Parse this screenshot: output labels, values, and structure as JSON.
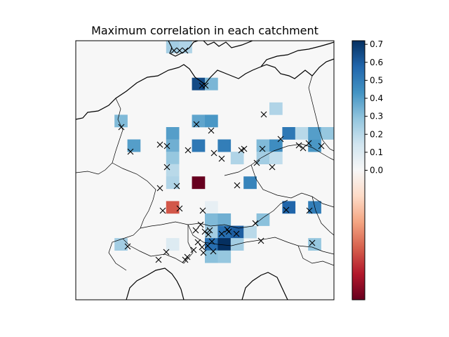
{
  "chart_data": {
    "type": "heatmap",
    "title": "Maximum correlation in each catchment",
    "xlabel": "",
    "ylabel": "",
    "colormap": "RdBu",
    "colorbar": {
      "ticks": [
        0.7,
        0.6,
        0.5,
        0.4,
        0.3,
        0.2,
        0.1,
        0.0
      ],
      "tick_labels": [
        "0.7",
        "0.6",
        "0.5",
        "0.4",
        "0.3",
        "0.2",
        "0.1",
        "0.0"
      ],
      "range": [
        -0.72,
        0.72
      ],
      "position": "right"
    },
    "background_color": "#f7f7f7",
    "map_region": "Central Europe (Germany and neighbours)",
    "grid": {
      "columns": 20,
      "rows": 21,
      "comment_cells": "row/col index from top-left, value = maximum correlation"
    },
    "cells": [
      {
        "row": 0,
        "col": 7,
        "value": 0.25
      },
      {
        "row": 0,
        "col": 8,
        "value": 0.22
      },
      {
        "row": 3,
        "col": 9,
        "value": 0.65
      },
      {
        "row": 3,
        "col": 10,
        "value": 0.33
      },
      {
        "row": 5,
        "col": 15,
        "value": 0.22
      },
      {
        "row": 6,
        "col": 3,
        "value": 0.32
      },
      {
        "row": 6,
        "col": 9,
        "value": 0.38
      },
      {
        "row": 6,
        "col": 10,
        "value": 0.42
      },
      {
        "row": 7,
        "col": 7,
        "value": 0.4
      },
      {
        "row": 7,
        "col": 16,
        "value": 0.52
      },
      {
        "row": 7,
        "col": 17,
        "value": 0.2
      },
      {
        "row": 7,
        "col": 18,
        "value": 0.4
      },
      {
        "row": 7,
        "col": 19,
        "value": 0.28
      },
      {
        "row": 8,
        "col": 4,
        "value": 0.4
      },
      {
        "row": 8,
        "col": 7,
        "value": 0.35
      },
      {
        "row": 8,
        "col": 9,
        "value": 0.52
      },
      {
        "row": 8,
        "col": 11,
        "value": 0.5
      },
      {
        "row": 8,
        "col": 14,
        "value": 0.32
      },
      {
        "row": 8,
        "col": 15,
        "value": 0.45
      },
      {
        "row": 8,
        "col": 18,
        "value": 0.42
      },
      {
        "row": 9,
        "col": 7,
        "value": 0.28
      },
      {
        "row": 9,
        "col": 12,
        "value": 0.22
      },
      {
        "row": 9,
        "col": 14,
        "value": 0.25
      },
      {
        "row": 9,
        "col": 15,
        "value": 0.18
      },
      {
        "row": 10,
        "col": 7,
        "value": 0.2
      },
      {
        "row": 11,
        "col": 7,
        "value": 0.22
      },
      {
        "row": 11,
        "col": 9,
        "value": -0.72
      },
      {
        "row": 11,
        "col": 13,
        "value": 0.48
      },
      {
        "row": 13,
        "col": 7,
        "value": -0.45
      },
      {
        "row": 13,
        "col": 10,
        "value": 0.06
      },
      {
        "row": 13,
        "col": 16,
        "value": 0.58
      },
      {
        "row": 13,
        "col": 18,
        "value": 0.5
      },
      {
        "row": 14,
        "col": 10,
        "value": 0.32
      },
      {
        "row": 14,
        "col": 11,
        "value": 0.35
      },
      {
        "row": 14,
        "col": 14,
        "value": 0.3
      },
      {
        "row": 15,
        "col": 10,
        "value": 0.25
      },
      {
        "row": 15,
        "col": 11,
        "value": 0.55
      },
      {
        "row": 15,
        "col": 12,
        "value": 0.6
      },
      {
        "row": 15,
        "col": 13,
        "value": 0.2
      },
      {
        "row": 16,
        "col": 3,
        "value": 0.25
      },
      {
        "row": 16,
        "col": 7,
        "value": 0.1
      },
      {
        "row": 16,
        "col": 10,
        "value": 0.55
      },
      {
        "row": 16,
        "col": 11,
        "value": 0.72
      },
      {
        "row": 16,
        "col": 12,
        "value": 0.25
      },
      {
        "row": 16,
        "col": 18,
        "value": 0.28
      },
      {
        "row": 17,
        "col": 10,
        "value": 0.3
      },
      {
        "row": 17,
        "col": 11,
        "value": 0.28
      }
    ],
    "markers": {
      "symbol": "x",
      "comment": "catchment gauge locations marked with x",
      "count": 58
    }
  }
}
